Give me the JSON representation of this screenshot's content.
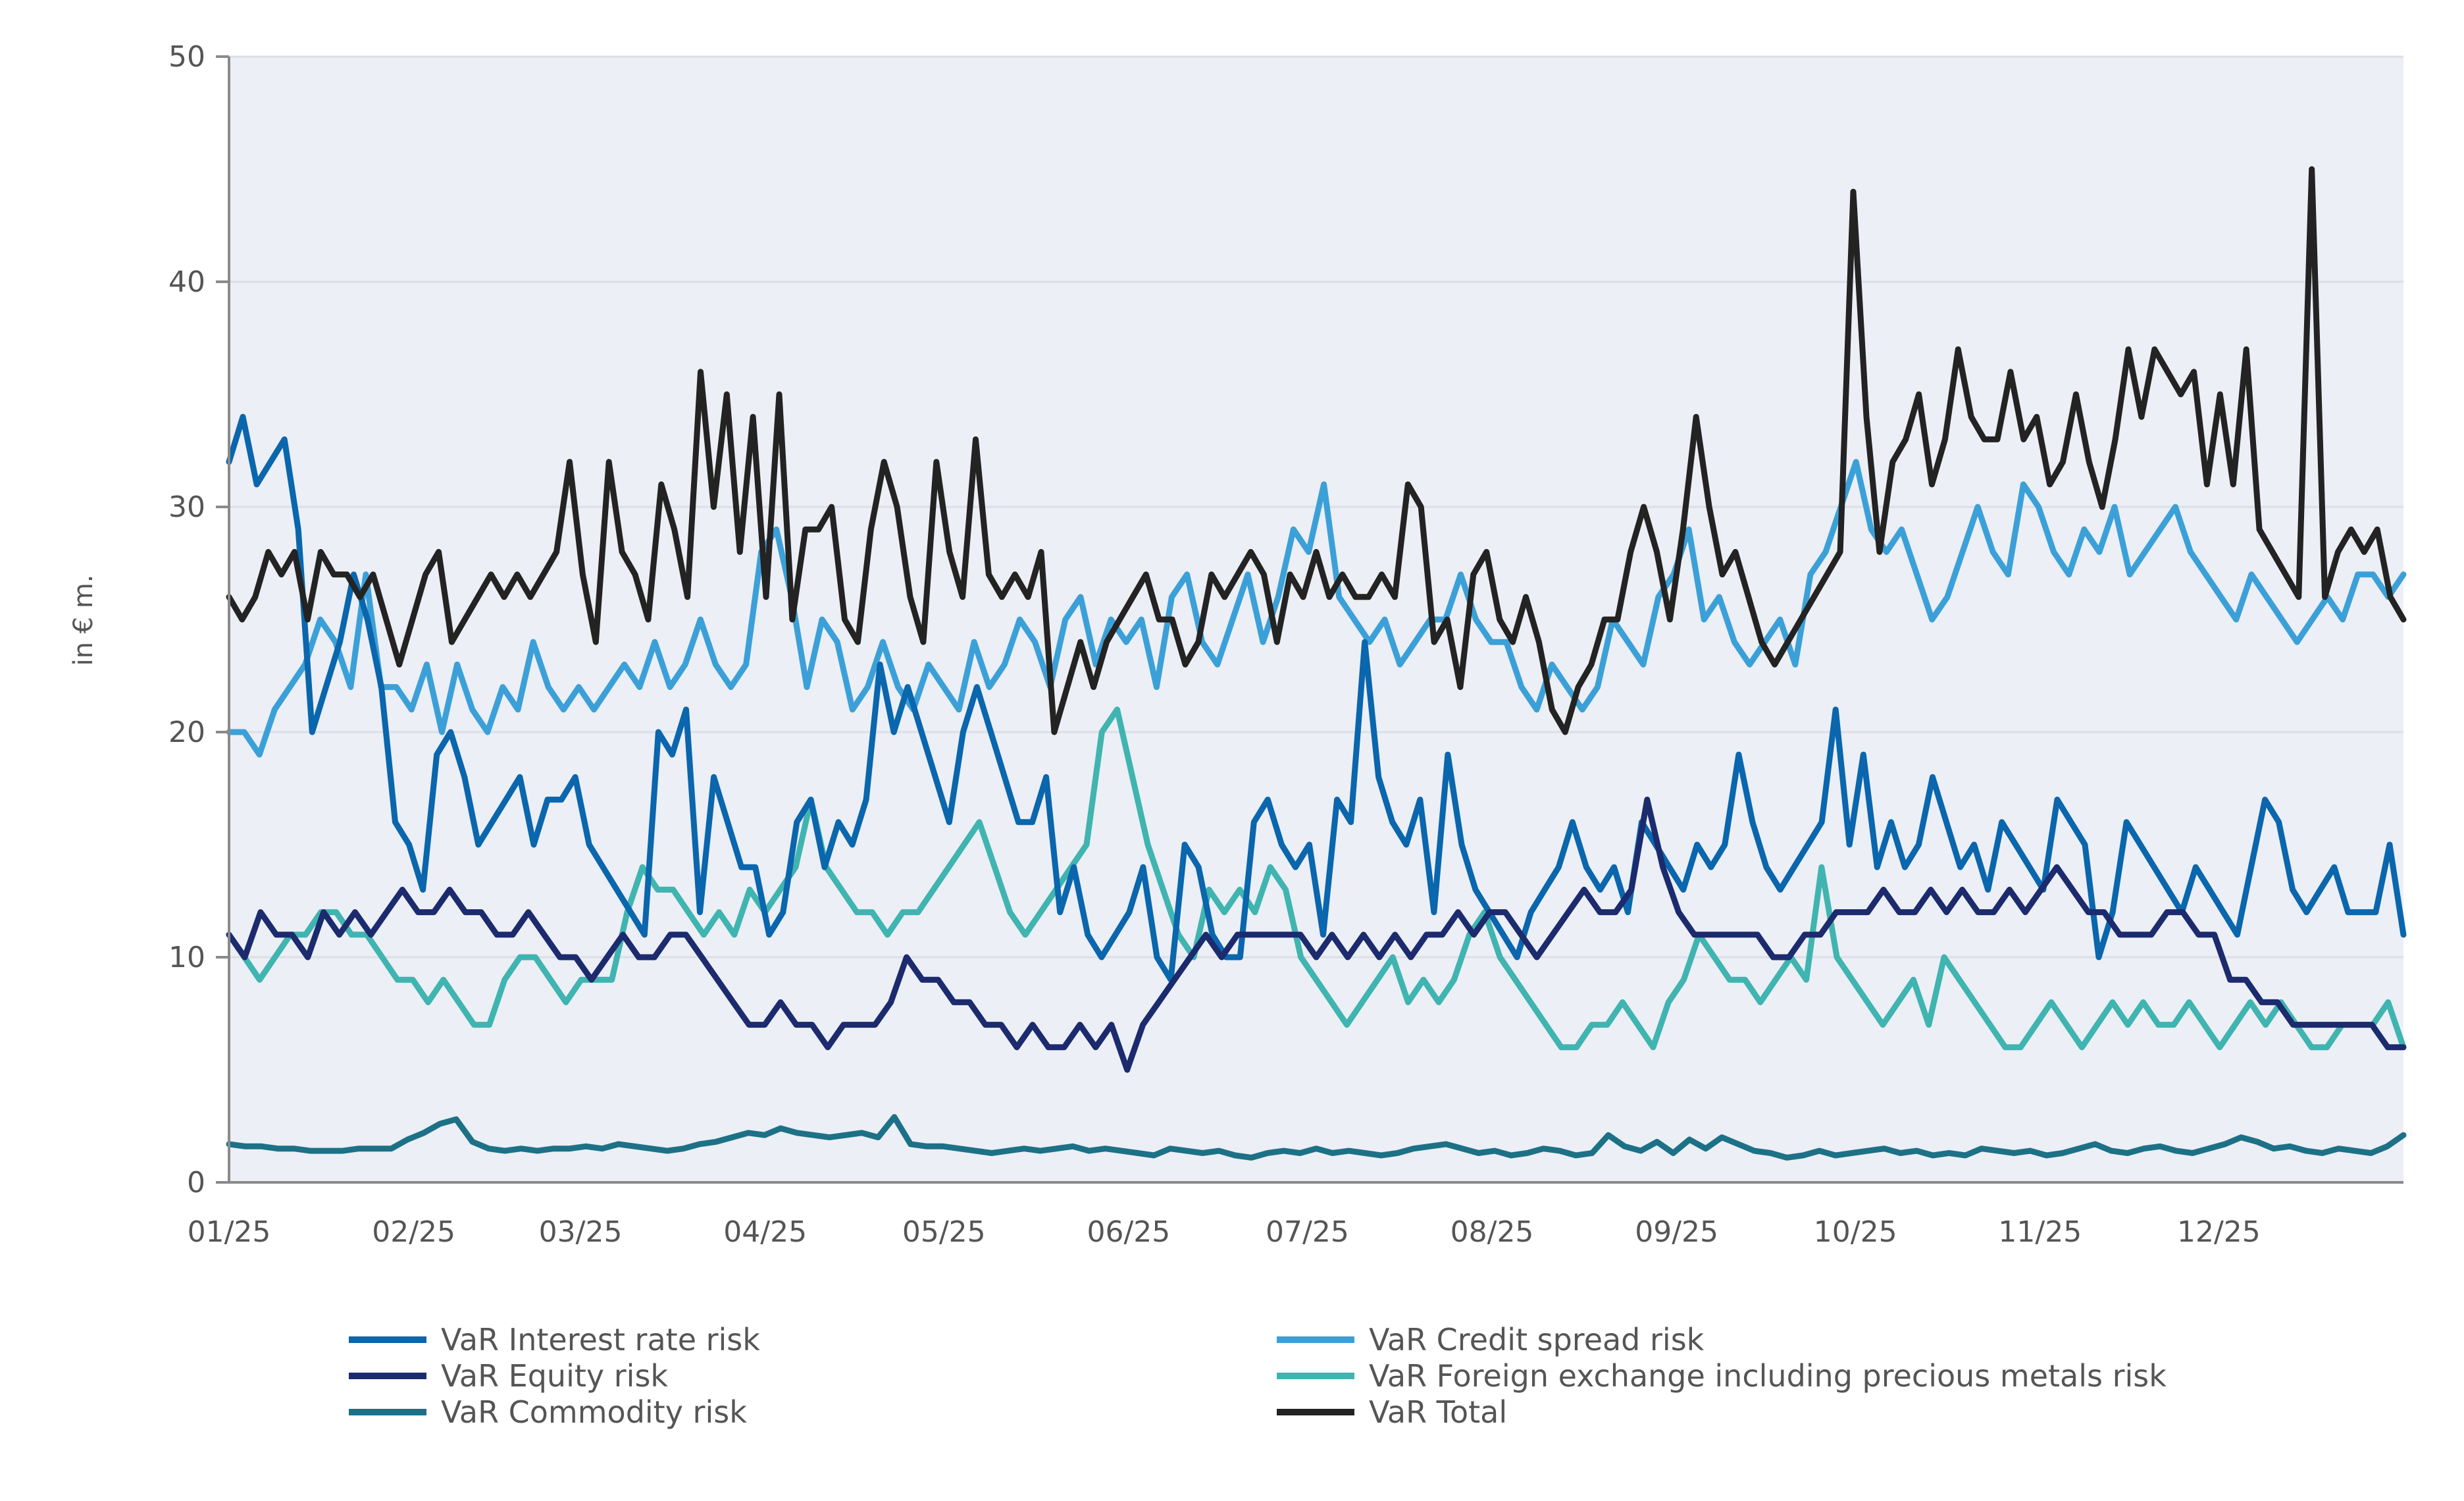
{
  "chart_data": {
    "type": "line",
    "title": "",
    "xlabel": "",
    "ylabel": "in € m.",
    "ylim": [
      0,
      50
    ],
    "yticks": [
      0,
      10,
      20,
      30,
      40,
      50
    ],
    "months": [
      "01/25",
      "02/25",
      "03/25",
      "04/25",
      "05/25",
      "06/25",
      "07/25",
      "08/25",
      "09/25",
      "10/25",
      "11/25",
      "12/25"
    ],
    "grid": true,
    "legend_position": "bottom",
    "series": [
      {
        "name": "VaR Interest rate risk",
        "color": "#0a66ad",
        "values": [
          32,
          34,
          31,
          32,
          33,
          29,
          20,
          22,
          24,
          27,
          25,
          22,
          16,
          15,
          13,
          19,
          20,
          18,
          15,
          16,
          17,
          18,
          15,
          17,
          17,
          18,
          15,
          14,
          13,
          12,
          11,
          20,
          19,
          21,
          12,
          18,
          16,
          14,
          14,
          11,
          12,
          16,
          17,
          14,
          16,
          15,
          17,
          23,
          20,
          22,
          20,
          18,
          16,
          20,
          22,
          20,
          18,
          16,
          16,
          18,
          12,
          14,
          11,
          10,
          11,
          12,
          14,
          10,
          9,
          15,
          14,
          11,
          10,
          10,
          16,
          17,
          15,
          14,
          15,
          11,
          17,
          16,
          24,
          18,
          16,
          15,
          17,
          12,
          19,
          15,
          13,
          12,
          11,
          10,
          12,
          13,
          14,
          16,
          14,
          13,
          14,
          12,
          16,
          15,
          14,
          13,
          15,
          14,
          15,
          19,
          16,
          14,
          13,
          14,
          15,
          16,
          21,
          15,
          19,
          14,
          16,
          14,
          15,
          18,
          16,
          14,
          15,
          13,
          16,
          15,
          14,
          13,
          17,
          16,
          15,
          10,
          12,
          16,
          15,
          14,
          13,
          12,
          14,
          13,
          12,
          11,
          14,
          17,
          16,
          13,
          12,
          13,
          14,
          12,
          12,
          12,
          15,
          11
        ]
      },
      {
        "name": "VaR Credit spread risk",
        "color": "#3ca0d8",
        "values": [
          20,
          20,
          19,
          21,
          22,
          23,
          25,
          24,
          22,
          27,
          22,
          22,
          21,
          23,
          20,
          23,
          21,
          20,
          22,
          21,
          24,
          22,
          21,
          22,
          21,
          22,
          23,
          22,
          24,
          22,
          23,
          25,
          23,
          22,
          23,
          28,
          29,
          26,
          22,
          25,
          24,
          21,
          22,
          24,
          22,
          21,
          23,
          22,
          21,
          24,
          22,
          23,
          25,
          24,
          22,
          25,
          26,
          23,
          25,
          24,
          25,
          22,
          26,
          27,
          24,
          23,
          25,
          27,
          24,
          26,
          29,
          28,
          31,
          26,
          25,
          24,
          25,
          23,
          24,
          25,
          25,
          27,
          25,
          24,
          24,
          22,
          21,
          23,
          22,
          21,
          22,
          25,
          24,
          23,
          26,
          27,
          29,
          25,
          26,
          24,
          23,
          24,
          25,
          23,
          27,
          28,
          30,
          32,
          29,
          28,
          29,
          27,
          25,
          26,
          28,
          30,
          28,
          27,
          31,
          30,
          28,
          27,
          29,
          28,
          30,
          27,
          28,
          29,
          30,
          28,
          27,
          26,
          25,
          27,
          26,
          25,
          24,
          25,
          26,
          25,
          27,
          27,
          26,
          27
        ]
      },
      {
        "name": "VaR Equity risk",
        "color": "#1c2a6e",
        "values": [
          11,
          10,
          12,
          11,
          11,
          10,
          12,
          11,
          12,
          11,
          12,
          13,
          12,
          12,
          13,
          12,
          12,
          11,
          11,
          12,
          11,
          10,
          10,
          9,
          10,
          11,
          10,
          10,
          11,
          11,
          10,
          9,
          8,
          7,
          7,
          8,
          7,
          7,
          6,
          7,
          7,
          7,
          8,
          10,
          9,
          9,
          8,
          8,
          7,
          7,
          6,
          7,
          6,
          6,
          7,
          6,
          7,
          5,
          7,
          8,
          9,
          10,
          11,
          10,
          11,
          11,
          11,
          11,
          11,
          10,
          11,
          10,
          11,
          10,
          11,
          10,
          11,
          11,
          12,
          11,
          12,
          12,
          11,
          10,
          11,
          12,
          13,
          12,
          12,
          13,
          17,
          14,
          12,
          11,
          11,
          11,
          11,
          11,
          10,
          10,
          11,
          11,
          12,
          12,
          12,
          13,
          12,
          12,
          13,
          12,
          13,
          12,
          12,
          13,
          12,
          13,
          14,
          13,
          12,
          12,
          11,
          11,
          11,
          12,
          12,
          11,
          11,
          9,
          9,
          8,
          8,
          7,
          7,
          7,
          7,
          7,
          7,
          6,
          6
        ]
      },
      {
        "name": "VaR Foreign exchange including precious metals risk",
        "color": "#40b4b0",
        "values": [
          11,
          10,
          9,
          10,
          11,
          11,
          12,
          12,
          11,
          11,
          10,
          9,
          9,
          8,
          9,
          8,
          7,
          7,
          9,
          10,
          10,
          9,
          8,
          9,
          9,
          9,
          12,
          14,
          13,
          13,
          12,
          11,
          12,
          11,
          13,
          12,
          13,
          14,
          17,
          14,
          13,
          12,
          12,
          11,
          12,
          12,
          13,
          14,
          15,
          16,
          14,
          12,
          11,
          12,
          13,
          14,
          15,
          20,
          21,
          18,
          15,
          13,
          11,
          10,
          13,
          12,
          13,
          12,
          14,
          13,
          10,
          9,
          8,
          7,
          8,
          9,
          10,
          8,
          9,
          8,
          9,
          11,
          12,
          10,
          9,
          8,
          7,
          6,
          6,
          7,
          7,
          8,
          7,
          6,
          8,
          9,
          11,
          10,
          9,
          9,
          8,
          9,
          10,
          9,
          14,
          10,
          9,
          8,
          7,
          8,
          9,
          7,
          10,
          9,
          8,
          7,
          6,
          6,
          7,
          8,
          7,
          6,
          7,
          8,
          7,
          8,
          7,
          7,
          8,
          7,
          6,
          7,
          8,
          7,
          8,
          7,
          6,
          6,
          7,
          7,
          7,
          8,
          6
        ]
      },
      {
        "name": "VaR Commodity risk",
        "color": "#1d7186",
        "values": [
          1.7,
          1.6,
          1.6,
          1.5,
          1.5,
          1.4,
          1.4,
          1.4,
          1.5,
          1.5,
          1.5,
          1.9,
          2.2,
          2.6,
          2.8,
          1.8,
          1.5,
          1.4,
          1.5,
          1.4,
          1.5,
          1.5,
          1.6,
          1.5,
          1.7,
          1.6,
          1.5,
          1.4,
          1.5,
          1.7,
          1.8,
          2.0,
          2.2,
          2.1,
          2.4,
          2.2,
          2.1,
          2.0,
          2.1,
          2.2,
          2.0,
          2.9,
          1.7,
          1.6,
          1.6,
          1.5,
          1.4,
          1.3,
          1.4,
          1.5,
          1.4,
          1.5,
          1.6,
          1.4,
          1.5,
          1.4,
          1.3,
          1.2,
          1.5,
          1.4,
          1.3,
          1.4,
          1.2,
          1.1,
          1.3,
          1.4,
          1.3,
          1.5,
          1.3,
          1.4,
          1.3,
          1.2,
          1.3,
          1.5,
          1.6,
          1.7,
          1.5,
          1.3,
          1.4,
          1.2,
          1.3,
          1.5,
          1.4,
          1.2,
          1.3,
          2.1,
          1.6,
          1.4,
          1.8,
          1.3,
          1.9,
          1.5,
          2.0,
          1.7,
          1.4,
          1.3,
          1.1,
          1.2,
          1.4,
          1.2,
          1.3,
          1.4,
          1.5,
          1.3,
          1.4,
          1.2,
          1.3,
          1.2,
          1.5,
          1.4,
          1.3,
          1.4,
          1.2,
          1.3,
          1.5,
          1.7,
          1.4,
          1.3,
          1.5,
          1.6,
          1.4,
          1.3,
          1.5,
          1.7,
          2.0,
          1.8,
          1.5,
          1.6,
          1.4,
          1.3,
          1.5,
          1.4,
          1.3,
          1.6,
          2.1
        ]
      },
      {
        "name": "VaR Total",
        "color": "#232323",
        "values": [
          26,
          25,
          26,
          28,
          27,
          28,
          25,
          28,
          27,
          27,
          26,
          27,
          25,
          23,
          25,
          27,
          28,
          24,
          25,
          26,
          27,
          26,
          27,
          26,
          27,
          28,
          32,
          27,
          24,
          32,
          28,
          27,
          25,
          31,
          29,
          26,
          36,
          30,
          35,
          28,
          34,
          26,
          35,
          25,
          29,
          29,
          30,
          25,
          24,
          29,
          32,
          30,
          26,
          24,
          32,
          28,
          26,
          33,
          27,
          26,
          27,
          26,
          28,
          20,
          22,
          24,
          22,
          24,
          25,
          26,
          27,
          25,
          25,
          23,
          24,
          27,
          26,
          27,
          28,
          27,
          24,
          27,
          26,
          28,
          26,
          27,
          26,
          26,
          27,
          26,
          31,
          30,
          24,
          25,
          22,
          27,
          28,
          25,
          24,
          26,
          24,
          21,
          20,
          22,
          23,
          25,
          25,
          28,
          30,
          28,
          25,
          29,
          34,
          30,
          27,
          28,
          26,
          24,
          23,
          24,
          25,
          26,
          27,
          28,
          44,
          34,
          28,
          32,
          33,
          35,
          31,
          33,
          37,
          34,
          33,
          33,
          36,
          33,
          34,
          31,
          32,
          35,
          32,
          30,
          33,
          37,
          34,
          37,
          36,
          35,
          36,
          31,
          35,
          31,
          37,
          29,
          28,
          27,
          26,
          45,
          26,
          28,
          29,
          28,
          29,
          26,
          25
        ]
      }
    ]
  }
}
